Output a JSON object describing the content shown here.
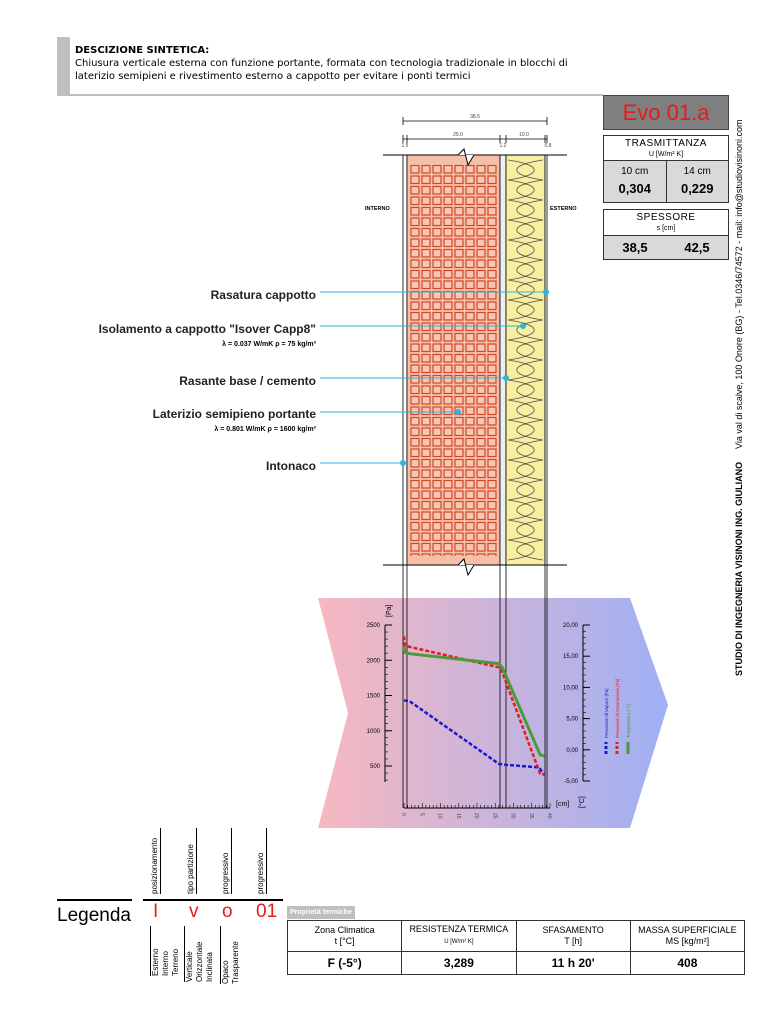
{
  "header": {
    "title": "DESCIZIONE SINTETICA:",
    "description": "Chiusura verticale esterna con funzione portante, formata con tecnologia tradizionale in blocchi di laterizio semipieni e rivestimento esterno a cappotto per evitare i ponti termici"
  },
  "section": {
    "dims": {
      "total": "38.5",
      "brick": "25.0",
      "insulation": "10.0",
      "intonaco": "1.5",
      "rasante": "1.2",
      "rasatura": "0.8"
    },
    "interno": "INTERNO",
    "esterno": "ESTERNO"
  },
  "layers": [
    {
      "name": "Rasatura cappotto",
      "props": ""
    },
    {
      "name": "Isolamento a cappotto \"Isover Capp8\"",
      "props": "λ = 0.037 W/mK  ρ = 75 kg/m³"
    },
    {
      "name": "Rasante base / cemento",
      "props": ""
    },
    {
      "name": "Laterizio semipieno portante",
      "props": "λ = 0.801 W/mK  ρ = 1600 kg/m³"
    },
    {
      "name": "Intonaco",
      "props": ""
    }
  ],
  "code": "Evo 01.a",
  "trasmittanza": {
    "title": "TRASMITTANZA",
    "unit": "U [W/m² K]",
    "cols": [
      {
        "label": "10 cm",
        "value": "0,304"
      },
      {
        "label": "14 cm",
        "value": "0,229"
      }
    ]
  },
  "spessore": {
    "title": "SPESSORE",
    "unit": "s [cm]",
    "values": [
      "38,5",
      "42,5"
    ]
  },
  "studio": {
    "name": "STUDIO DI INGEGNERIA VISINONI ING. GIULIANO",
    "address": "Via val di scalve, 100 Onore  (BG)  -  Tel.0346/74572 - mail: info@studiovisinoni.com"
  },
  "chart_data": {
    "type": "line",
    "xlabel": "[cm]",
    "ylabel_left": "[Pa]",
    "ylabel_right": "[°C]",
    "xlim": [
      0,
      40
    ],
    "xticks": [
      0,
      5,
      10,
      15,
      20,
      25,
      30,
      35,
      40
    ],
    "ylim_left": [
      250,
      2500
    ],
    "yticks_left": [
      500,
      1000,
      1500,
      2000,
      2500
    ],
    "ylim_right": [
      -5,
      20
    ],
    "yticks_right": [
      "-5,00",
      "0,00",
      "5,00",
      "10,00",
      "15,00",
      "20,00"
    ],
    "series": [
      {
        "name": "Pressione di Vapore [Pa]",
        "axis": "left",
        "color": "#1a1acc",
        "dash": true,
        "x": [
          0,
          1.5,
          26,
          27.2,
          37,
          38.5
        ],
        "y": [
          1430,
          1420,
          530,
          520,
          480,
          370
        ]
      },
      {
        "name": "Pressione di Saturazione [Pa]",
        "axis": "left",
        "color": "#e31c1c",
        "dash": true,
        "x": [
          0,
          0.3,
          1.5,
          26,
          27,
          37.3,
          38.5
        ],
        "y": [
          2340,
          2210,
          2190,
          1900,
          1820,
          390,
          380
        ]
      },
      {
        "name": "Temperatura [°C]",
        "axis": "right",
        "color": "#4a9a3a",
        "dash": false,
        "x": [
          0,
          0.2,
          1.5,
          26,
          27,
          37.3,
          38.5
        ],
        "y": [
          16.5,
          15.6,
          15.4,
          13.8,
          13.1,
          -0.8,
          -1.0
        ]
      }
    ]
  },
  "legenda": {
    "title": "Legenda",
    "letters": [
      "I",
      "v",
      "o",
      "01"
    ],
    "top": [
      "posizionamento",
      "tipo partizione",
      "progressivo",
      "progressivo"
    ],
    "bottom": [
      [
        "Esterno",
        "Interno",
        "Terreno"
      ],
      [
        "Verticale",
        "Orizzontale",
        "Inclinata"
      ],
      [
        "Opaco",
        "Trasparente"
      ]
    ]
  },
  "proprieta": {
    "label": "Proprietà termiche",
    "headers": [
      [
        "Zona Climatica",
        "t  [°C]"
      ],
      [
        "RESISTENZA TERMICA",
        "U [W/m² K]"
      ],
      [
        "SFASAMENTO",
        "T  [h]"
      ],
      [
        "MASSA SUPERFICIALE",
        "MS  [kg/m²]"
      ]
    ],
    "values": [
      "F  (-5°)",
      "3,289",
      "11 h 20'",
      "408"
    ]
  }
}
